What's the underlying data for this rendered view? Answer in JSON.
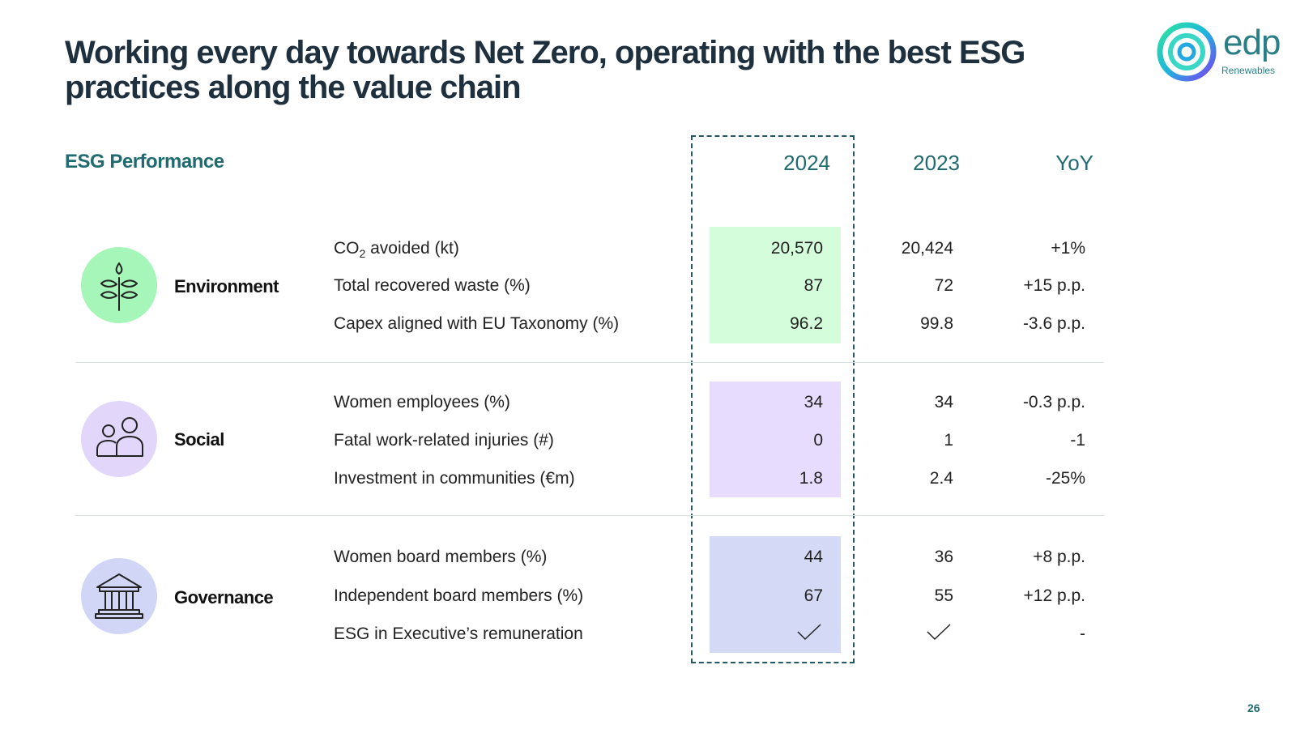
{
  "title": "Working every day towards Net Zero, operating with the best ESG practices along the value chain",
  "logo": {
    "word": "edp",
    "sub": "Renewables"
  },
  "section_heading": "ESG Performance",
  "columns": {
    "c2024": "2024",
    "c2023": "2023",
    "yoy": "YoY"
  },
  "categories": {
    "environment": {
      "name": "Environment",
      "icon": "plant-icon",
      "color": "#a6f5b9",
      "highlight": "#d4fddb",
      "rows": [
        {
          "label_main": "CO",
          "label_sub": "2",
          "label_rest": " avoided (kt)",
          "v2024": "20,570",
          "v2023": "20,424",
          "yoy": "+1%"
        },
        {
          "label": "Total recovered waste (%)",
          "v2024": "87",
          "v2023": "72",
          "yoy": "+15 p.p."
        },
        {
          "label": "Capex aligned with EU Taxonomy (%)",
          "v2024": "96.2",
          "v2023": "99.8",
          "yoy": "-3.6 p.p."
        }
      ]
    },
    "social": {
      "name": "Social",
      "icon": "people-icon",
      "color": "#e2d6fb",
      "highlight": "#e8dcfe",
      "rows": [
        {
          "label": "Women employees (%)",
          "v2024": "34",
          "v2023": "34",
          "yoy": "-0.3 p.p."
        },
        {
          "label": "Fatal work-related injuries (#)",
          "v2024": "0",
          "v2023": "1",
          "yoy": "-1"
        },
        {
          "label": "Investment in communities (€m)",
          "v2024": "1.8",
          "v2023": "2.4",
          "yoy": "-25%"
        }
      ]
    },
    "governance": {
      "name": "Governance",
      "icon": "institution-icon",
      "color": "#d1d6f6",
      "highlight": "#d4d9f6",
      "rows": [
        {
          "label": "Women board members (%)",
          "v2024": "44",
          "v2023": "36",
          "yoy": "+8 p.p."
        },
        {
          "label": "Independent board members (%)",
          "v2024": "67",
          "v2023": "55",
          "yoy": "+12 p.p."
        },
        {
          "label": "ESG in Executive’s remuneration",
          "v2024_icon": "checkmark-icon",
          "v2023_icon": "checkmark-icon",
          "yoy": "-"
        }
      ]
    }
  },
  "page_number": "26"
}
